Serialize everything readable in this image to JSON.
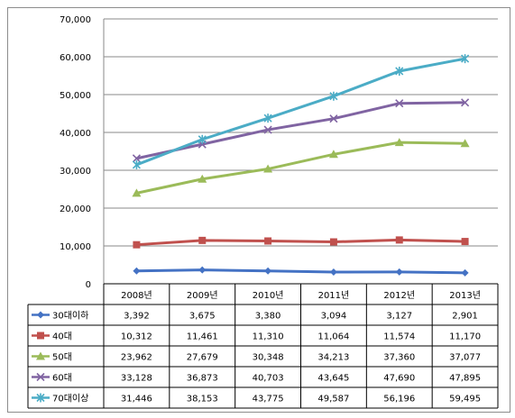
{
  "chart_data": {
    "type": "line",
    "title": "",
    "xlabel": "",
    "ylabel": "",
    "ylim": [
      0,
      70000
    ],
    "yticks": [
      "0",
      "10,000",
      "20,000",
      "30,000",
      "40,000",
      "50,000",
      "60,000",
      "70,000"
    ],
    "grid": "horizontal",
    "legend": "data-table",
    "categories": [
      "2008년",
      "2009년",
      "2010년",
      "2011년",
      "2012년",
      "2013년"
    ],
    "series": [
      {
        "name": "30대이하",
        "color": "#4472c4",
        "marker": "diamond",
        "values": [
          3392,
          3675,
          3380,
          3094,
          3127,
          2901
        ],
        "labels": [
          "3,392",
          "3,675",
          "3,380",
          "3,094",
          "3,127",
          "2,901"
        ]
      },
      {
        "name": "40대",
        "color": "#c0504d",
        "marker": "square",
        "values": [
          10312,
          11461,
          11310,
          11064,
          11574,
          11170
        ],
        "labels": [
          "10,312",
          "11,461",
          "11,310",
          "11,064",
          "11,574",
          "11,170"
        ]
      },
      {
        "name": "50대",
        "color": "#9bbb59",
        "marker": "triangle",
        "values": [
          23962,
          27679,
          30348,
          34213,
          37360,
          37077
        ],
        "labels": [
          "23,962",
          "27,679",
          "30,348",
          "34,213",
          "37,360",
          "37,077"
        ]
      },
      {
        "name": "60대",
        "color": "#8064a2",
        "marker": "x",
        "values": [
          33128,
          36873,
          40703,
          43645,
          47690,
          47895
        ],
        "labels": [
          "33,128",
          "36,873",
          "40,703",
          "43,645",
          "47,690",
          "47,895"
        ]
      },
      {
        "name": "70대이상",
        "color": "#4bacc6",
        "marker": "star",
        "values": [
          31446,
          38153,
          43775,
          49587,
          56196,
          59495
        ],
        "labels": [
          "31,446",
          "38,153",
          "43,775",
          "49,587",
          "56,196",
          "59,495"
        ]
      }
    ]
  }
}
